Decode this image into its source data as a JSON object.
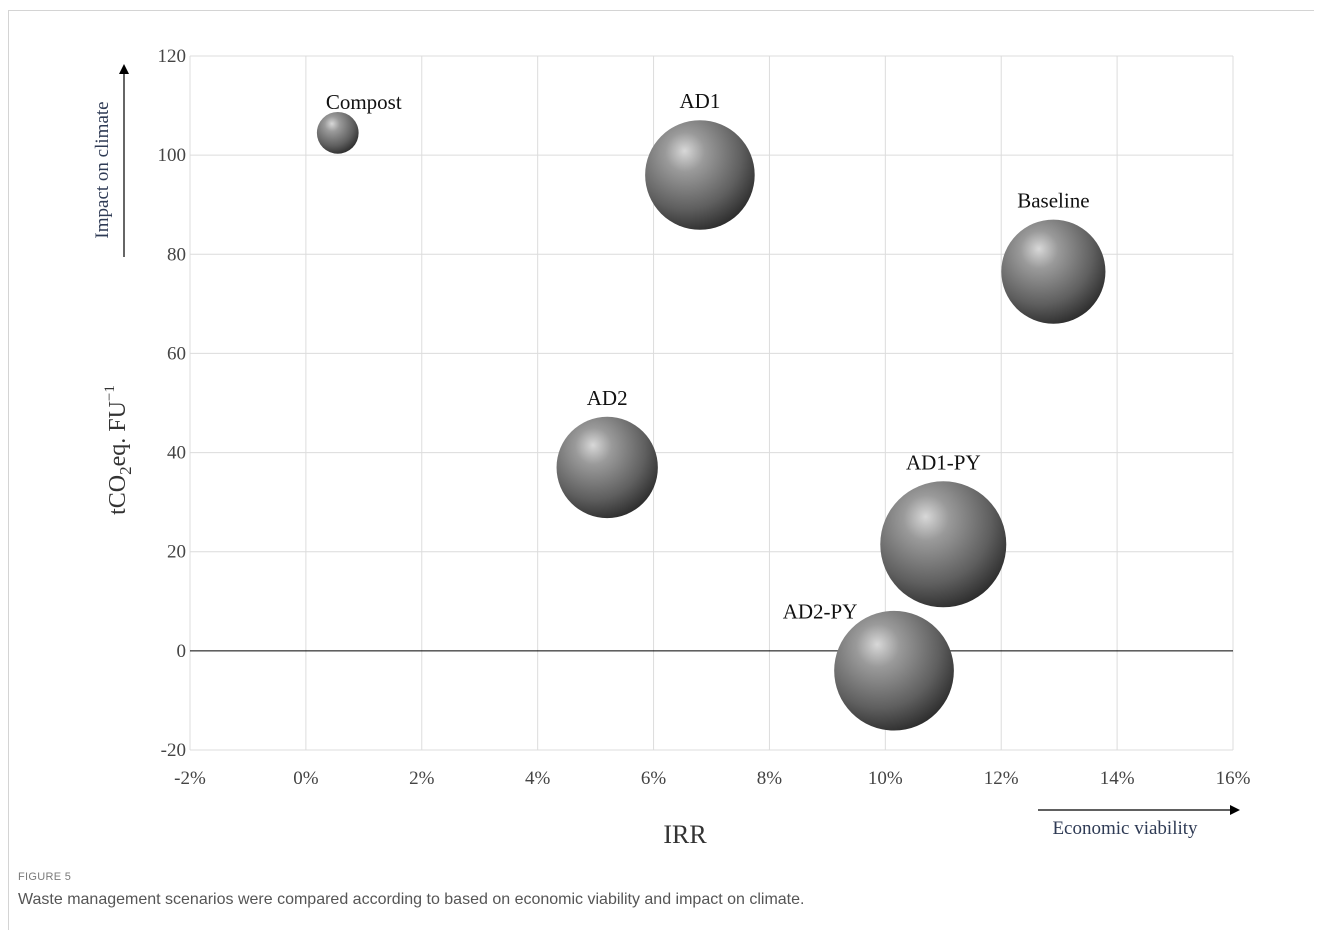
{
  "figure": {
    "label": "FIGURE 5",
    "caption": "Waste management scenarios were compared according to based on economic viability and impact on climate."
  },
  "chart_data": {
    "type": "bubble",
    "xlabel": "IRR",
    "ylabel": "tCO",
    "ylabel_sub": "2",
    "ylabel_tail": "eq. FU",
    "ylabel_sup": "−1",
    "xlim": [
      -0.02,
      0.16
    ],
    "ylim": [
      -20,
      120
    ],
    "xticks": [
      -0.02,
      0,
      0.02,
      0.04,
      0.06,
      0.08,
      0.1,
      0.12,
      0.14,
      0.16
    ],
    "xtick_labels": [
      "-2%",
      "0%",
      "2%",
      "4%",
      "6%",
      "8%",
      "10%",
      "12%",
      "14%",
      "16%"
    ],
    "yticks": [
      -20,
      0,
      20,
      40,
      60,
      80,
      100,
      120
    ],
    "ytick_labels": [
      "-20",
      "0",
      "20",
      "40",
      "60",
      "80",
      "100",
      "120"
    ],
    "grid": true,
    "points": [
      {
        "label": "Compost",
        "x": 0.0055,
        "y": 104.5,
        "size": 0.09
      },
      {
        "label": "AD1",
        "x": 0.068,
        "y": 96,
        "size": 0.62
      },
      {
        "label": "Baseline",
        "x": 0.129,
        "y": 76.5,
        "size": 0.56
      },
      {
        "label": "AD2",
        "x": 0.052,
        "y": 37,
        "size": 0.53
      },
      {
        "label": "AD1-PY",
        "x": 0.11,
        "y": 21.5,
        "size": 0.82
      },
      {
        "label": "AD2-PY",
        "x": 0.1015,
        "y": -4,
        "size": 0.74
      }
    ],
    "annotations": {
      "y_arrow": "Impact on climate",
      "x_arrow": "Economic viability"
    },
    "colors": {
      "bubble_light": "#cfcfcf",
      "bubble_mid": "#6e6e6e",
      "bubble_dark": "#2f2f2f",
      "grid": "#dcdcdc",
      "annotation": "#2f3b55"
    }
  }
}
